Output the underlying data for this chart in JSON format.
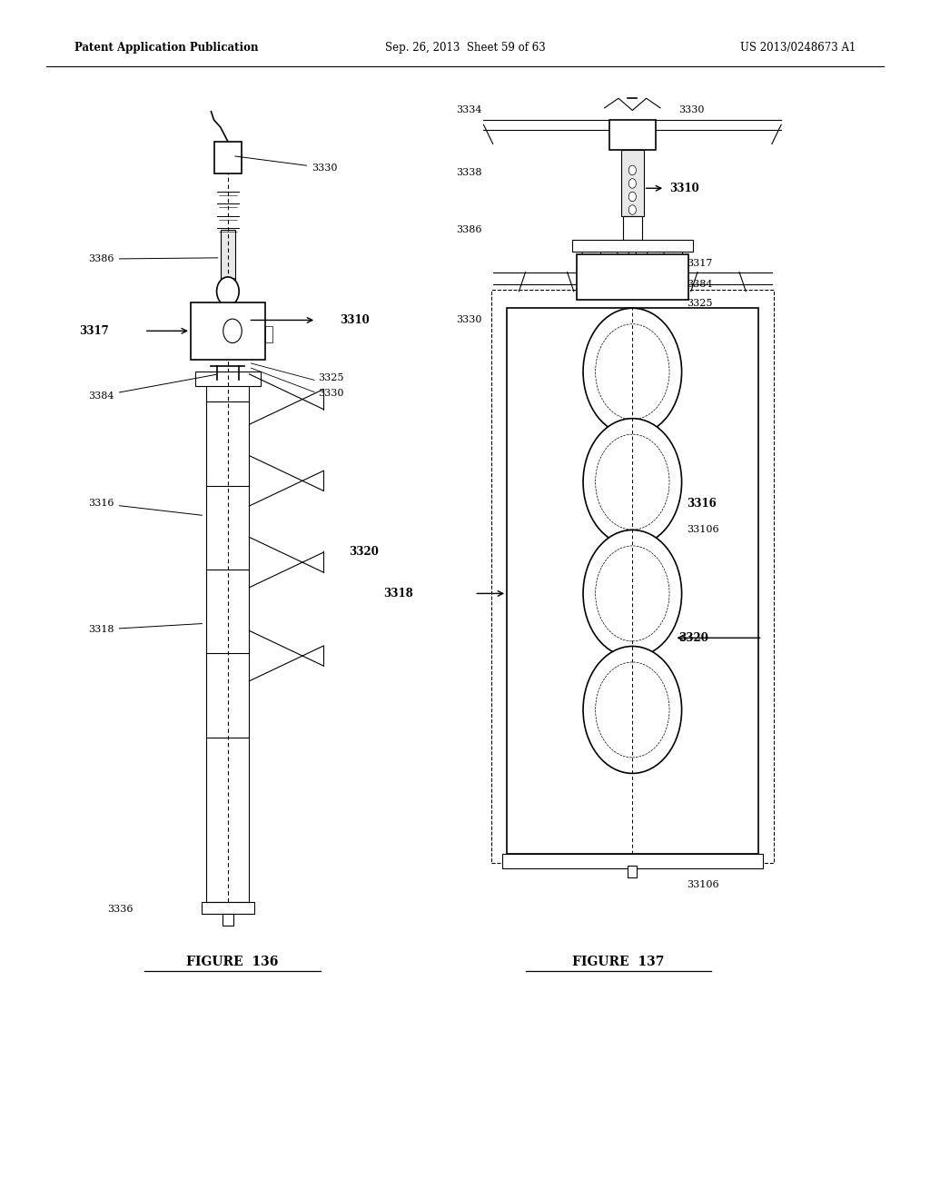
{
  "bg_color": "#ffffff",
  "header_left": "Patent Application Publication",
  "header_mid": "Sep. 26, 2013  Sheet 59 of 63",
  "header_right": "US 2013/0248673 A1",
  "fig136_title": "FIGURE  136",
  "fig137_title": "FIGURE  137",
  "line_color": "#000000"
}
